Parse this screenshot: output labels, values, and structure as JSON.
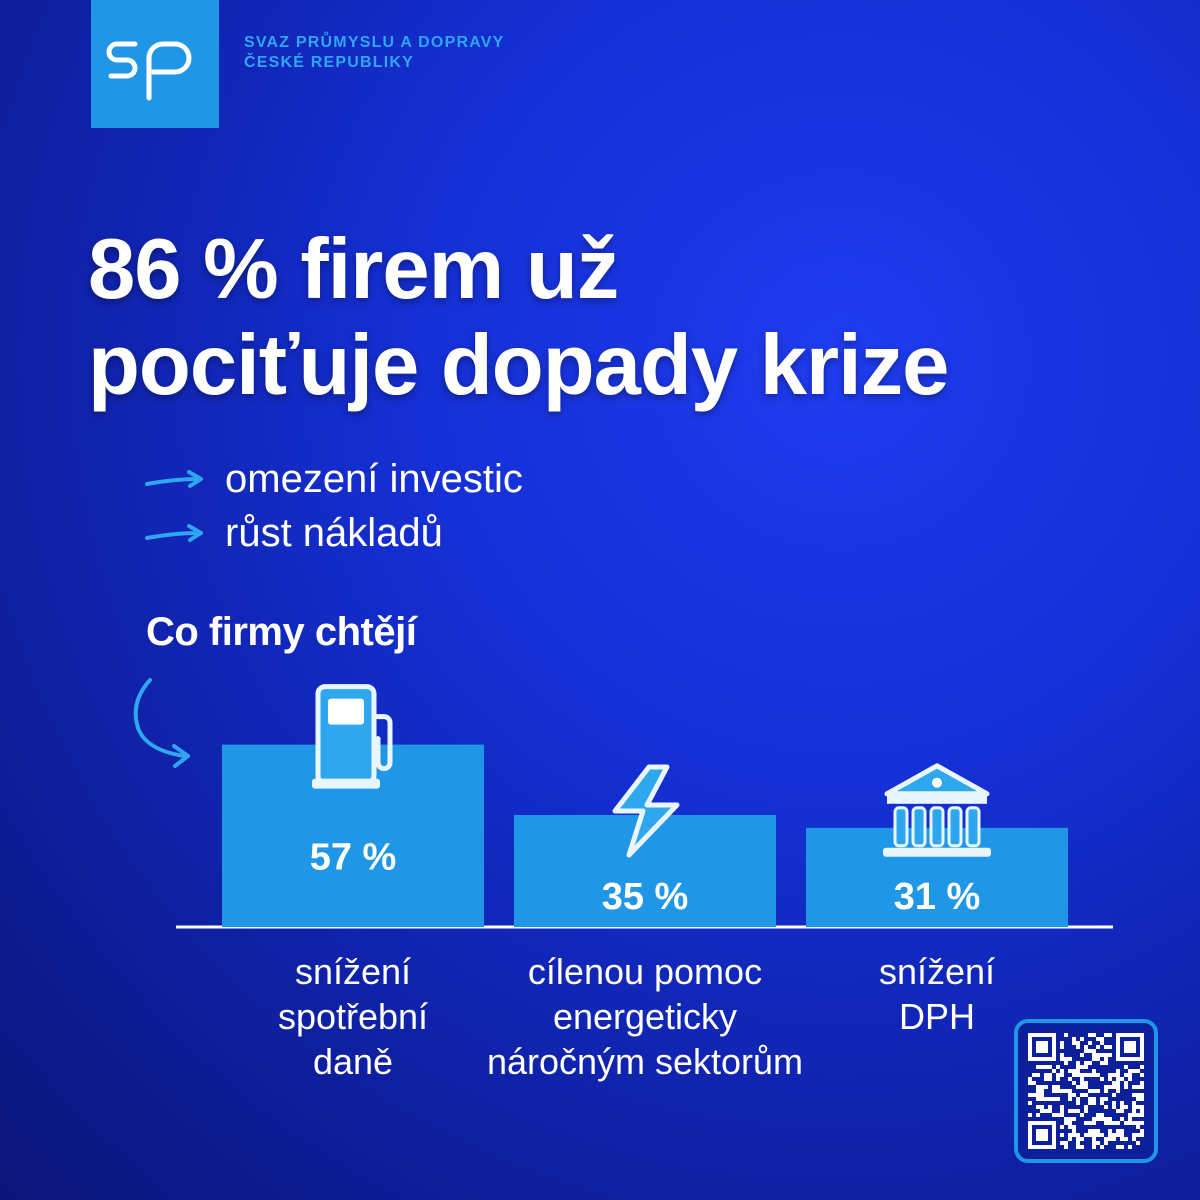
{
  "brand": {
    "logo_text": "sp",
    "org_line1": "SVAZ PRŮMYSLU A DOPRAVY",
    "org_line2": "ČESKÉ REPUBLIKY"
  },
  "headline": {
    "line1": "86 % firem už",
    "line2": "pociťuje dopady krize"
  },
  "bullets": [
    {
      "text": "omezení investic",
      "icon": "arrow-right-icon"
    },
    {
      "text": "růst nákladů",
      "icon": "arrow-right-icon"
    }
  ],
  "subtitle": "Co firmy chtějí",
  "colors": {
    "background": "#1530d6",
    "accent": "#1f97e6",
    "text": "#ffffff"
  },
  "chart_data": {
    "type": "bar",
    "title": "",
    "xlabel": "",
    "ylabel": "",
    "ylim": [
      0,
      100
    ],
    "grid": false,
    "categories": [
      [
        "snížení",
        "spotřební",
        "daně"
      ],
      [
        "cílenou pomoc",
        "energeticky",
        "náročným sektorům"
      ],
      [
        "snížení",
        "DPH"
      ]
    ],
    "values": [
      57,
      35,
      31
    ],
    "value_labels": [
      "57 %",
      "35 %",
      "31 %"
    ],
    "icons": [
      "fuel-pump-icon",
      "lightning-bolt-icon",
      "bank-building-icon"
    ]
  },
  "qr": {
    "icon": "qr-code-icon"
  }
}
